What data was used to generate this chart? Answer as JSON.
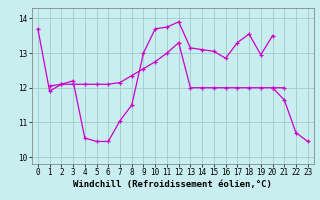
{
  "xlabel": "Windchill (Refroidissement éolien,°C)",
  "background_color": "#c8eef0",
  "grid_color": "#a0cccc",
  "line_color": "#cc00cc",
  "xlim": [
    -0.5,
    23.5
  ],
  "ylim": [
    9.8,
    14.3
  ],
  "yticks": [
    10,
    11,
    12,
    13,
    14
  ],
  "xticks": [
    0,
    1,
    2,
    3,
    4,
    5,
    6,
    7,
    8,
    9,
    10,
    11,
    12,
    13,
    14,
    15,
    16,
    17,
    18,
    19,
    20,
    21,
    22,
    23
  ],
  "line1_x": [
    0,
    1,
    2,
    3,
    4,
    5,
    6,
    7,
    8,
    9,
    10,
    11,
    12,
    13,
    14,
    15,
    16,
    17,
    18,
    19,
    20
  ],
  "line1_y": [
    13.7,
    11.9,
    12.1,
    12.2,
    10.55,
    10.45,
    10.45,
    11.05,
    11.5,
    13.0,
    13.7,
    13.75,
    13.9,
    13.15,
    13.1,
    13.05,
    12.85,
    13.3,
    13.55,
    12.95,
    13.5
  ],
  "line2_x": [
    1,
    2,
    3,
    4,
    5,
    6,
    7,
    8,
    9,
    10,
    11,
    12,
    13,
    14,
    15,
    16,
    17,
    18,
    19,
    20,
    21
  ],
  "line2_y": [
    12.05,
    12.1,
    12.1,
    12.1,
    12.1,
    12.1,
    12.15,
    12.35,
    12.55,
    12.75,
    13.0,
    13.3,
    12.0,
    12.0,
    12.0,
    12.0,
    12.0,
    12.0,
    12.0,
    12.0,
    12.0
  ],
  "line3_x": [
    20,
    21,
    22,
    23
  ],
  "line3_y": [
    12.0,
    11.65,
    10.7,
    10.45
  ],
  "axis_fontsize": 6.5,
  "tick_fontsize": 5.5
}
